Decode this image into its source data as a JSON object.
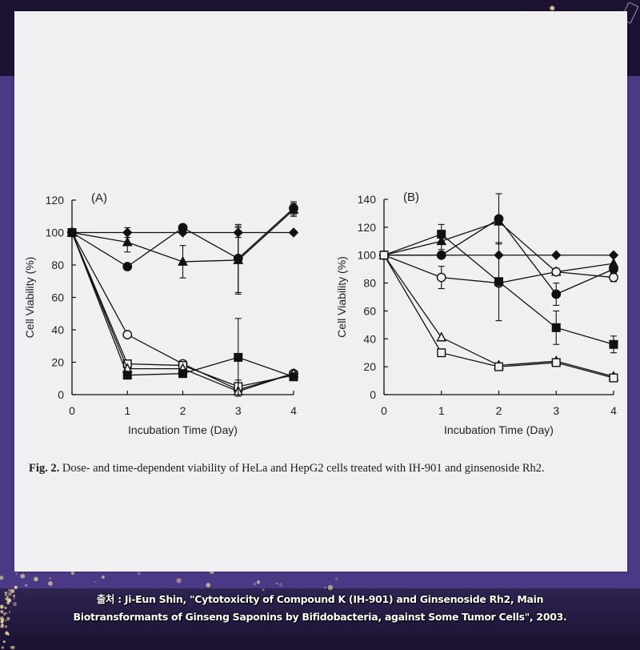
{
  "chart_data": [
    {
      "type": "line",
      "panel_label": "(A)",
      "xlabel": "Incubation Time (Day)",
      "ylabel": "Cell Viability (%)",
      "xlim": [
        0,
        4
      ],
      "ylim": [
        0,
        120
      ],
      "xticks": [
        0,
        1,
        2,
        3,
        4
      ],
      "yticks": [
        0,
        20,
        40,
        60,
        80,
        100,
        120
      ],
      "series": [
        {
          "marker": "diamond-filled",
          "x": [
            0,
            1,
            2,
            3,
            4
          ],
          "y": [
            100,
            100,
            100,
            100,
            100
          ],
          "err": [
            0,
            3,
            0,
            3,
            0
          ]
        },
        {
          "marker": "circle-filled",
          "x": [
            0,
            1,
            2,
            3,
            4
          ],
          "y": [
            100,
            79,
            103,
            84,
            115
          ],
          "err": [
            0,
            0,
            0,
            21,
            4
          ]
        },
        {
          "marker": "triangle-filled",
          "x": [
            0,
            1,
            2,
            3,
            4
          ],
          "y": [
            100,
            94,
            82,
            83,
            114
          ],
          "err": [
            0,
            6,
            10,
            21,
            4
          ]
        },
        {
          "marker": "circle-open",
          "x": [
            0,
            1,
            2,
            3,
            4
          ],
          "y": [
            100,
            37,
            19,
            3,
            13
          ],
          "err": [
            0,
            0,
            0,
            0,
            0
          ]
        },
        {
          "marker": "square-open",
          "x": [
            0,
            1,
            2,
            3,
            4
          ],
          "y": [
            100,
            19,
            18,
            5,
            12
          ],
          "err": [
            0,
            0,
            0,
            4,
            0
          ]
        },
        {
          "marker": "triangle-open",
          "x": [
            0,
            1,
            2,
            3,
            4
          ],
          "y": [
            100,
            16,
            16,
            2,
            13
          ],
          "err": [
            0,
            0,
            0,
            0,
            0
          ]
        },
        {
          "marker": "square-filled",
          "x": [
            0,
            1,
            2,
            3,
            4
          ],
          "y": [
            100,
            12,
            13,
            23,
            11
          ],
          "err": [
            0,
            0,
            2,
            24,
            0
          ]
        }
      ]
    },
    {
      "type": "line",
      "panel_label": "(B)",
      "xlabel": "Incubation Time (Day)",
      "ylabel": "Cell Viability (%)",
      "xlim": [
        0,
        4
      ],
      "ylim": [
        0,
        140
      ],
      "xticks": [
        0,
        1,
        2,
        3,
        4
      ],
      "yticks": [
        0,
        20,
        40,
        60,
        80,
        100,
        120,
        140
      ],
      "series": [
        {
          "marker": "diamond-filled",
          "x": [
            0,
            1,
            2,
            3,
            4
          ],
          "y": [
            100,
            100,
            100,
            100,
            100
          ],
          "err": [
            0,
            0,
            0,
            0,
            0
          ]
        },
        {
          "marker": "circle-filled",
          "x": [
            0,
            1,
            2,
            3,
            4
          ],
          "y": [
            100,
            100,
            126,
            72,
            90
          ],
          "err": [
            0,
            0,
            18,
            8,
            0
          ]
        },
        {
          "marker": "triangle-filled",
          "x": [
            0,
            1,
            2,
            3,
            4
          ],
          "y": [
            100,
            110,
            124,
            88,
            94
          ],
          "err": [
            0,
            6,
            0,
            0,
            0
          ]
        },
        {
          "marker": "circle-open",
          "x": [
            0,
            1,
            2,
            3,
            4
          ],
          "y": [
            100,
            84,
            80,
            88,
            84
          ],
          "err": [
            0,
            8,
            0,
            0,
            3
          ]
        },
        {
          "marker": "square-filled",
          "x": [
            0,
            1,
            2,
            3,
            4
          ],
          "y": [
            100,
            115,
            81,
            48,
            36
          ],
          "err": [
            0,
            7,
            28,
            12,
            6
          ]
        },
        {
          "marker": "triangle-open",
          "x": [
            0,
            1,
            2,
            3,
            4
          ],
          "y": [
            100,
            41,
            21,
            24,
            13
          ],
          "err": [
            0,
            0,
            0,
            0,
            0
          ]
        },
        {
          "marker": "square-open",
          "x": [
            0,
            1,
            2,
            3,
            4
          ],
          "y": [
            100,
            30,
            20,
            23,
            12
          ],
          "err": [
            0,
            0,
            0,
            0,
            0
          ]
        }
      ]
    }
  ],
  "caption": {
    "prefix": "Fig. 2.",
    "text": " Dose- and time-dependent viability of HeLa and HepG2 cells treated with IH-901 and ginsenoside Rh2."
  },
  "source": {
    "line1": "출처 : Ji-Eun Shin, \"Cytotoxicity of Compound K (IH-901) and Ginsenoside Rh2, Main",
    "line2": "Biotransformants of Ginseng Saponins by Bifidobacteria, against Some Tumor Cells\", 2003."
  },
  "colors": {
    "background_band": "#4a3a86",
    "paper": "#f1eff1",
    "ink": "#111111"
  }
}
